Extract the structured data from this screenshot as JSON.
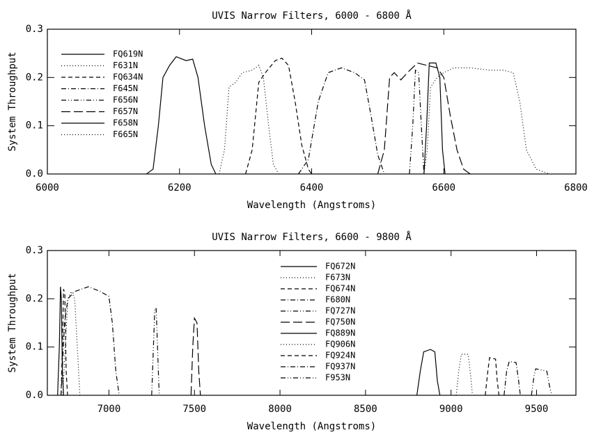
{
  "chart_data": [
    {
      "type": "line",
      "title": "UVIS Narrow Filters, 6000 - 6800 Å",
      "xlabel": "Wavelength (Angstroms)",
      "ylabel": "System Throughput",
      "xlim": [
        6000,
        6800
      ],
      "ylim": [
        0,
        0.3
      ],
      "xticks": [
        6000,
        6200,
        6400,
        6600,
        6800
      ],
      "yticks": [
        {
          "value": 0,
          "label": "0.0"
        },
        0.1,
        0.2,
        0.3
      ],
      "grid": false,
      "legend": "upper left",
      "series": [
        {
          "name": "FQ619N",
          "color": "#000000",
          "dash": "solid",
          "x": [
            6150,
            6160,
            6168,
            6175,
            6185,
            6195,
            6210,
            6220,
            6228,
            6238,
            6248,
            6255
          ],
          "values": [
            0,
            0.01,
            0.1,
            0.2,
            0.225,
            0.243,
            0.235,
            0.238,
            0.2,
            0.1,
            0.02,
            0
          ]
        },
        {
          "name": "F631N",
          "color": "#000000",
          "dash": "dotted",
          "x": [
            6260,
            6268,
            6275,
            6285,
            6295,
            6310,
            6320,
            6327,
            6335,
            6342,
            6350
          ],
          "values": [
            0,
            0.05,
            0.18,
            0.19,
            0.21,
            0.215,
            0.225,
            0.2,
            0.1,
            0.02,
            0
          ]
        },
        {
          "name": "FQ634N",
          "color": "#000000",
          "dash": "dashed",
          "x": [
            6300,
            6310,
            6320,
            6330,
            6345,
            6355,
            6365,
            6375,
            6385,
            6395,
            6400
          ],
          "values": [
            0,
            0.05,
            0.19,
            0.21,
            0.235,
            0.24,
            0.225,
            0.15,
            0.06,
            0.01,
            0
          ]
        },
        {
          "name": "F645N",
          "color": "#000000",
          "dash": "dashdot",
          "x": [
            6380,
            6395,
            6410,
            6425,
            6445,
            6465,
            6480,
            6490,
            6500,
            6510
          ],
          "values": [
            0,
            0.03,
            0.15,
            0.21,
            0.22,
            0.21,
            0.195,
            0.12,
            0.04,
            0
          ]
        },
        {
          "name": "F656N",
          "color": "#000000",
          "dash": "dashdotdot",
          "x": [
            6548,
            6553,
            6557,
            6562,
            6566,
            6570
          ],
          "values": [
            0,
            0.1,
            0.215,
            0.21,
            0.1,
            0
          ]
        },
        {
          "name": "F657N",
          "color": "#000000",
          "dash": "longdash",
          "x": [
            6500,
            6510,
            6518,
            6525,
            6535,
            6545,
            6560,
            6575,
            6590,
            6600,
            6610,
            6620,
            6630,
            6640
          ],
          "values": [
            0,
            0.05,
            0.2,
            0.21,
            0.195,
            0.21,
            0.23,
            0.225,
            0.22,
            0.2,
            0.12,
            0.05,
            0.01,
            0
          ]
        },
        {
          "name": "F658N",
          "color": "#000000",
          "dash": "solid",
          "x": [
            6570,
            6574,
            6578,
            6588,
            6594,
            6598,
            6602
          ],
          "values": [
            0,
            0.1,
            0.23,
            0.23,
            0.2,
            0.05,
            0
          ]
        },
        {
          "name": "F665N",
          "color": "#000000",
          "dash": "dotted",
          "x": [
            6570,
            6575,
            6580,
            6590,
            6600,
            6615,
            6640,
            6670,
            6690,
            6705,
            6715,
            6725,
            6740,
            6760
          ],
          "values": [
            0,
            0.05,
            0.18,
            0.2,
            0.21,
            0.22,
            0.22,
            0.215,
            0.215,
            0.21,
            0.15,
            0.05,
            0.01,
            0
          ]
        }
      ]
    },
    {
      "type": "line",
      "title": "UVIS Narrow Filters, 6600 - 9800 Å",
      "xlabel": "Wavelength (Angstroms)",
      "ylabel": "System Throughput",
      "xlim": [
        6640,
        9730
      ],
      "ylim": [
        0,
        0.3
      ],
      "xticks": [
        7000,
        7500,
        8000,
        8500,
        9000,
        9500
      ],
      "yticks": [
        {
          "value": 0,
          "label": "0.0"
        },
        0.1,
        0.2,
        0.3
      ],
      "grid": false,
      "legend": "upper center",
      "series": [
        {
          "name": "FQ672N",
          "color": "#000000",
          "dash": "solid",
          "x": [
            6700,
            6710,
            6717,
            6722,
            6728,
            6735
          ],
          "values": [
            0,
            0.1,
            0.225,
            0.2,
            0.05,
            0
          ]
        },
        {
          "name": "F673N",
          "color": "#000000",
          "dash": "dotted",
          "x": [
            6730,
            6745,
            6760,
            6780,
            6800,
            6815,
            6830
          ],
          "values": [
            0,
            0.1,
            0.2,
            0.215,
            0.2,
            0.1,
            0
          ]
        },
        {
          "name": "FQ674N",
          "color": "#000000",
          "dash": "dashed",
          "x": [
            6720,
            6728,
            6735,
            6742,
            6750,
            6758
          ],
          "values": [
            0,
            0.1,
            0.22,
            0.21,
            0.05,
            0
          ]
        },
        {
          "name": "F680N",
          "color": "#000000",
          "dash": "dashdot",
          "x": [
            6720,
            6740,
            6760,
            6800,
            6880,
            6950,
            7000,
            7020,
            7040,
            7060
          ],
          "values": [
            0,
            0.15,
            0.2,
            0.215,
            0.225,
            0.215,
            0.205,
            0.15,
            0.05,
            0
          ]
        },
        {
          "name": "FQ727N",
          "color": "#000000",
          "dash": "dashdotdot",
          "x": [
            7250,
            7260,
            7268,
            7276,
            7284,
            7294
          ],
          "values": [
            0,
            0.1,
            0.18,
            0.18,
            0.1,
            0
          ]
        },
        {
          "name": "FQ750N",
          "color": "#000000",
          "dash": "longdash",
          "x": [
            7480,
            7490,
            7500,
            7515,
            7525,
            7535
          ],
          "values": [
            0,
            0.1,
            0.16,
            0.15,
            0.05,
            0
          ]
        },
        {
          "name": "FQ889N",
          "color": "#000000",
          "dash": "solid",
          "x": [
            8800,
            8820,
            8840,
            8880,
            8905,
            8920,
            8935
          ],
          "values": [
            0,
            0.05,
            0.09,
            0.095,
            0.09,
            0.03,
            0
          ]
        },
        {
          "name": "FQ906N",
          "color": "#000000",
          "dash": "dotted",
          "x": [
            9030,
            9045,
            9060,
            9100,
            9115,
            9125
          ],
          "values": [
            0,
            0.05,
            0.085,
            0.085,
            0.04,
            0
          ]
        },
        {
          "name": "FQ924N",
          "color": "#000000",
          "dash": "dashed",
          "x": [
            9200,
            9215,
            9225,
            9260,
            9270,
            9280
          ],
          "values": [
            0,
            0.05,
            0.078,
            0.075,
            0.03,
            0
          ]
        },
        {
          "name": "FQ937N",
          "color": "#000000",
          "dash": "dashdot",
          "x": [
            9310,
            9325,
            9340,
            9380,
            9395,
            9405
          ],
          "values": [
            0,
            0.05,
            0.07,
            0.068,
            0.03,
            0
          ]
        },
        {
          "name": "F953N",
          "color": "#000000",
          "dash": "dashdotdot",
          "x": [
            9470,
            9485,
            9495,
            9560,
            9575,
            9590
          ],
          "values": [
            0,
            0.04,
            0.055,
            0.05,
            0.02,
            0
          ]
        }
      ]
    }
  ]
}
